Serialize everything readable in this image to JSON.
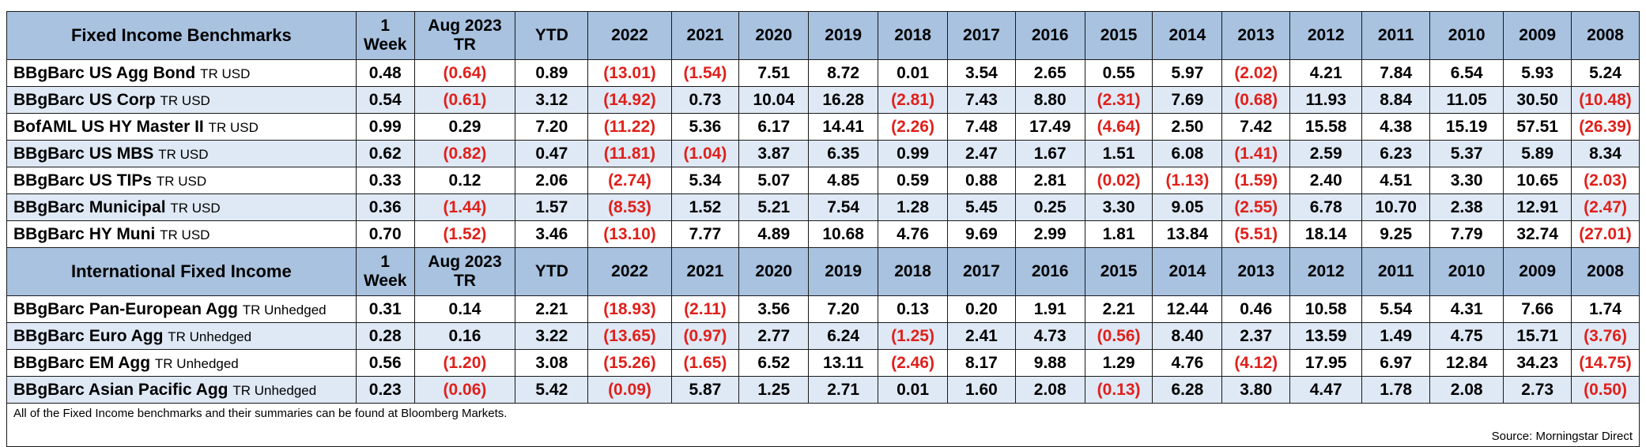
{
  "columns": [
    "1 Week",
    "Aug 2023 TR",
    "YTD",
    "2022",
    "2021",
    "2020",
    "2019",
    "2018",
    "2017",
    "2016",
    "2015",
    "2014",
    "2013",
    "2012",
    "2011",
    "2010",
    "2009",
    "2008"
  ],
  "sections": [
    {
      "title": "Fixed Income Benchmarks",
      "header_cols": [
        [
          "1",
          "Week"
        ],
        [
          "Aug 2023",
          "TR"
        ],
        [
          "YTD"
        ],
        [
          "2022"
        ],
        [
          "2021"
        ],
        [
          "2020"
        ],
        [
          "2019"
        ],
        [
          "2018"
        ],
        [
          "2017"
        ],
        [
          "2016"
        ],
        [
          "2015"
        ],
        [
          "2014"
        ],
        [
          "2013"
        ],
        [
          "2012"
        ],
        [
          "2011"
        ],
        [
          "2010"
        ],
        [
          "2009"
        ],
        [
          "2008"
        ]
      ],
      "rows": [
        {
          "name": "BBgBarc US Agg Bond",
          "suffix": "TR USD",
          "values": [
            "0.48",
            "(0.64)",
            "0.89",
            "(13.01)",
            "(1.54)",
            "7.51",
            "8.72",
            "0.01",
            "3.54",
            "2.65",
            "0.55",
            "5.97",
            "(2.02)",
            "4.21",
            "7.84",
            "6.54",
            "5.93",
            "5.24"
          ]
        },
        {
          "name": "BBgBarc US Corp",
          "suffix": "TR USD",
          "values": [
            "0.54",
            "(0.61)",
            "3.12",
            "(14.92)",
            "0.73",
            "10.04",
            "16.28",
            "(2.81)",
            "7.43",
            "8.80",
            "(2.31)",
            "7.69",
            "(0.68)",
            "11.93",
            "8.84",
            "11.05",
            "30.50",
            "(10.48)"
          ]
        },
        {
          "name": "BofAML US HY Master II",
          "suffix": "TR USD",
          "values": [
            "0.99",
            "0.29",
            "7.20",
            "(11.22)",
            "5.36",
            "6.17",
            "14.41",
            "(2.26)",
            "7.48",
            "17.49",
            "(4.64)",
            "2.50",
            "7.42",
            "15.58",
            "4.38",
            "15.19",
            "57.51",
            "(26.39)"
          ]
        },
        {
          "name": "BBgBarc US MBS",
          "suffix": "TR USD",
          "values": [
            "0.62",
            "(0.82)",
            "0.47",
            "(11.81)",
            "(1.04)",
            "3.87",
            "6.35",
            "0.99",
            "2.47",
            "1.67",
            "1.51",
            "6.08",
            "(1.41)",
            "2.59",
            "6.23",
            "5.37",
            "5.89",
            "8.34"
          ]
        },
        {
          "name": "BBgBarc US TIPs",
          "suffix": "TR USD",
          "values": [
            "0.33",
            "0.12",
            "2.06",
            "(2.74)",
            "5.34",
            "5.07",
            "4.85",
            "0.59",
            "0.88",
            "2.81",
            "(0.02)",
            "(1.13)",
            "(1.59)",
            "2.40",
            "4.51",
            "3.30",
            "10.65",
            "(2.03)"
          ]
        },
        {
          "name": "BBgBarc Municipal",
          "suffix": "TR USD",
          "values": [
            "0.36",
            "(1.44)",
            "1.57",
            "(8.53)",
            "1.52",
            "5.21",
            "7.54",
            "1.28",
            "5.45",
            "0.25",
            "3.30",
            "9.05",
            "(2.55)",
            "6.78",
            "10.70",
            "2.38",
            "12.91",
            "(2.47)"
          ]
        },
        {
          "name": "BBgBarc HY Muni",
          "suffix": "TR USD",
          "values": [
            "0.70",
            "(1.52)",
            "3.46",
            "(13.10)",
            "7.77",
            "4.89",
            "10.68",
            "4.76",
            "9.69",
            "2.99",
            "1.81",
            "13.84",
            "(5.51)",
            "18.14",
            "9.25",
            "7.79",
            "32.74",
            "(27.01)"
          ]
        }
      ]
    },
    {
      "title": "International Fixed Income",
      "header_cols": [
        [
          "1",
          "Week"
        ],
        [
          "Aug 2023",
          "TR"
        ],
        [
          "YTD"
        ],
        [
          "2022"
        ],
        [
          "2021"
        ],
        [
          "2020"
        ],
        [
          "2019"
        ],
        [
          "2018"
        ],
        [
          "2017"
        ],
        [
          "2016"
        ],
        [
          "2015"
        ],
        [
          "2014"
        ],
        [
          "2013"
        ],
        [
          "2012"
        ],
        [
          "2011"
        ],
        [
          "2010"
        ],
        [
          "2009"
        ],
        [
          "2008"
        ]
      ],
      "rows": [
        {
          "name": "BBgBarc Pan-European Agg",
          "suffix": "TR Unhedged",
          "values": [
            "0.31",
            "0.14",
            "2.21",
            "(18.93)",
            "(2.11)",
            "3.56",
            "7.20",
            "0.13",
            "0.20",
            "1.91",
            "2.21",
            "12.44",
            "0.46",
            "10.58",
            "5.54",
            "4.31",
            "7.66",
            "1.74"
          ]
        },
        {
          "name": "BBgBarc Euro Agg",
          "suffix": "TR Unhedged",
          "values": [
            "0.28",
            "0.16",
            "3.22",
            "(13.65)",
            "(0.97)",
            "2.77",
            "6.24",
            "(1.25)",
            "2.41",
            "4.73",
            "(0.56)",
            "8.40",
            "2.37",
            "13.59",
            "1.49",
            "4.75",
            "15.71",
            "(3.76)"
          ]
        },
        {
          "name": "BBgBarc EM Agg",
          "suffix": "TR Unhedged",
          "values": [
            "0.56",
            "(1.20)",
            "3.08",
            "(15.26)",
            "(1.65)",
            "6.52",
            "13.11",
            "(2.46)",
            "8.17",
            "9.88",
            "1.29",
            "4.76",
            "(4.12)",
            "17.95",
            "6.97",
            "12.84",
            "34.23",
            "(14.75)"
          ]
        },
        {
          "name": "BBgBarc Asian Pacific Agg",
          "suffix": "TR Unhedged",
          "values": [
            "0.23",
            "(0.06)",
            "5.42",
            "(0.09)",
            "5.87",
            "1.25",
            "2.71",
            "0.01",
            "1.60",
            "2.08",
            "(0.13)",
            "6.28",
            "3.80",
            "4.47",
            "1.78",
            "2.08",
            "2.73",
            "(0.50)"
          ]
        }
      ]
    }
  ],
  "footer": {
    "note": "All of the Fixed Income benchmarks and their summaries can be found at Bloomberg Markets.",
    "source": "Source: Morningstar Direct"
  },
  "colors": {
    "header_bg": "#a8c2e0",
    "alt_row_bg": "#dfe9f5",
    "negative": "#e0201b"
  }
}
